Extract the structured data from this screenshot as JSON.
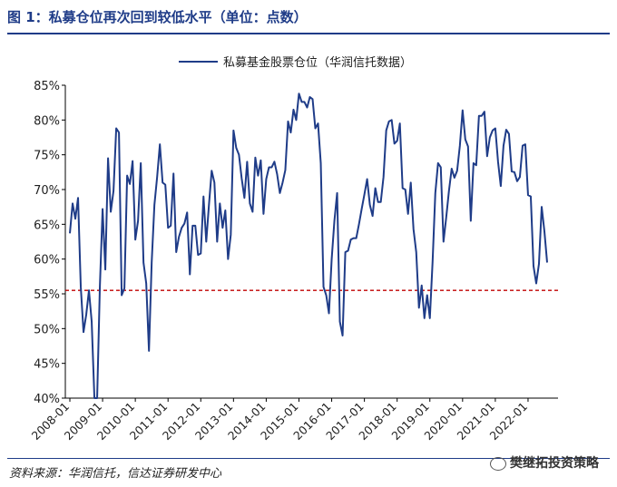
{
  "figure": {
    "title": "图 1：私募仓位再次回到较低水平（单位：点数）",
    "source": "资料来源：华润信托，信达证券研发中心",
    "watermark": "樊继拓投资策略"
  },
  "colors": {
    "line": "#1f3c88",
    "reference": "#c00000",
    "axis": "#000000",
    "title": "#1f3c88"
  },
  "chart_data": {
    "type": "line",
    "title": "",
    "xlabel": "",
    "ylabel": "",
    "ylim": [
      0.4,
      0.85
    ],
    "y_ticks": [
      "40%",
      "45%",
      "50%",
      "55%",
      "60%",
      "65%",
      "70%",
      "75%",
      "80%",
      "85%"
    ],
    "x_ticks": [
      "2008-01",
      "2009-01",
      "2010-01",
      "2011-01",
      "2012-01",
      "2013-01",
      "2014-01",
      "2015-01",
      "2016-01",
      "2017-01",
      "2018-01",
      "2019-01",
      "2020-01",
      "2021-01",
      "2022-01"
    ],
    "legend": {
      "position": "top-center"
    },
    "reference_line": {
      "y": 0.555,
      "style": "dashed"
    },
    "series": [
      {
        "name": "私募基金股票仓位（华润信托数据）",
        "x_start": "2008-01",
        "frequency": "monthly",
        "values": [
          0.637,
          0.68,
          0.658,
          0.688,
          0.56,
          0.495,
          0.52,
          0.555,
          0.51,
          0.4,
          0.4,
          0.56,
          0.672,
          0.585,
          0.745,
          0.668,
          0.698,
          0.788,
          0.782,
          0.548,
          0.558,
          0.72,
          0.708,
          0.741,
          0.628,
          0.655,
          0.738,
          0.595,
          0.565,
          0.468,
          0.595,
          0.678,
          0.718,
          0.765,
          0.71,
          0.707,
          0.645,
          0.648,
          0.723,
          0.61,
          0.632,
          0.645,
          0.651,
          0.667,
          0.578,
          0.648,
          0.648,
          0.606,
          0.608,
          0.69,
          0.625,
          0.678,
          0.727,
          0.71,
          0.625,
          0.68,
          0.645,
          0.67,
          0.6,
          0.635,
          0.785,
          0.76,
          0.75,
          0.716,
          0.688,
          0.74,
          0.68,
          0.668,
          0.746,
          0.72,
          0.742,
          0.665,
          0.715,
          0.732,
          0.732,
          0.74,
          0.722,
          0.695,
          0.71,
          0.728,
          0.798,
          0.782,
          0.815,
          0.8,
          0.838,
          0.826,
          0.826,
          0.818,
          0.833,
          0.83,
          0.788,
          0.795,
          0.738,
          0.56,
          0.548,
          0.522,
          0.6,
          0.655,
          0.695,
          0.51,
          0.49,
          0.61,
          0.612,
          0.628,
          0.63,
          0.63,
          0.65,
          0.672,
          0.693,
          0.715,
          0.678,
          0.662,
          0.702,
          0.682,
          0.682,
          0.718,
          0.785,
          0.798,
          0.8,
          0.766,
          0.77,
          0.795,
          0.702,
          0.7,
          0.665,
          0.71,
          0.643,
          0.61,
          0.53,
          0.562,
          0.515,
          0.548,
          0.515,
          0.596,
          0.695,
          0.738,
          0.732,
          0.625,
          0.66,
          0.698,
          0.73,
          0.717,
          0.727,
          0.763,
          0.814,
          0.772,
          0.762,
          0.655,
          0.738,
          0.735,
          0.806,
          0.806,
          0.812,
          0.748,
          0.775,
          0.785,
          0.788,
          0.74,
          0.705,
          0.763,
          0.786,
          0.78,
          0.726,
          0.725,
          0.712,
          0.718,
          0.763,
          0.765,
          0.692,
          0.69,
          0.59,
          0.565,
          0.593,
          0.675,
          0.64,
          0.595
        ]
      }
    ]
  }
}
